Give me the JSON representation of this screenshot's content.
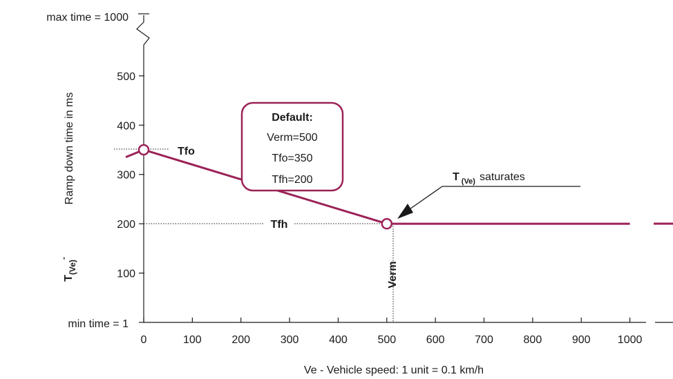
{
  "chart_data": {
    "type": "line",
    "title": "",
    "xlabel": "Ve - Vehicle speed: 1 unit = 0.1 km/h",
    "ylabel": "Ramp down time in ms",
    "ylabel_symbol": "T",
    "ylabel_symbol_sub": "(Ve)",
    "ylabel_symbol_sup": "-",
    "xlim": [
      0,
      1000
    ],
    "ylim": [
      1,
      1000
    ],
    "x_ticks": [
      0,
      100,
      200,
      300,
      400,
      500,
      600,
      700,
      800,
      900,
      1000
    ],
    "y_ticks": [
      100,
      200,
      300,
      400,
      500
    ],
    "y_extremes": {
      "max_label": "max time = 1000",
      "min_label": "min time = 1"
    },
    "series": [
      {
        "color": "#9b2257",
        "x": [
          -100,
          0,
          500,
          1000
        ],
        "y": [
          310,
          350,
          200,
          200
        ]
      }
    ],
    "markers": [
      {
        "x": 0,
        "y": 350
      },
      {
        "x": 500,
        "y": 200
      }
    ],
    "annotations": {
      "tfo": "Tfo",
      "tfh": "Tfh",
      "verm": "Verm",
      "saturates_symbol": "T",
      "saturates_sub": "(Ve)",
      "saturates_text": "saturates"
    },
    "callout": {
      "title": "Default:",
      "lines": [
        "Verm=500",
        "Tfo=350",
        "Tfh=200"
      ]
    }
  }
}
